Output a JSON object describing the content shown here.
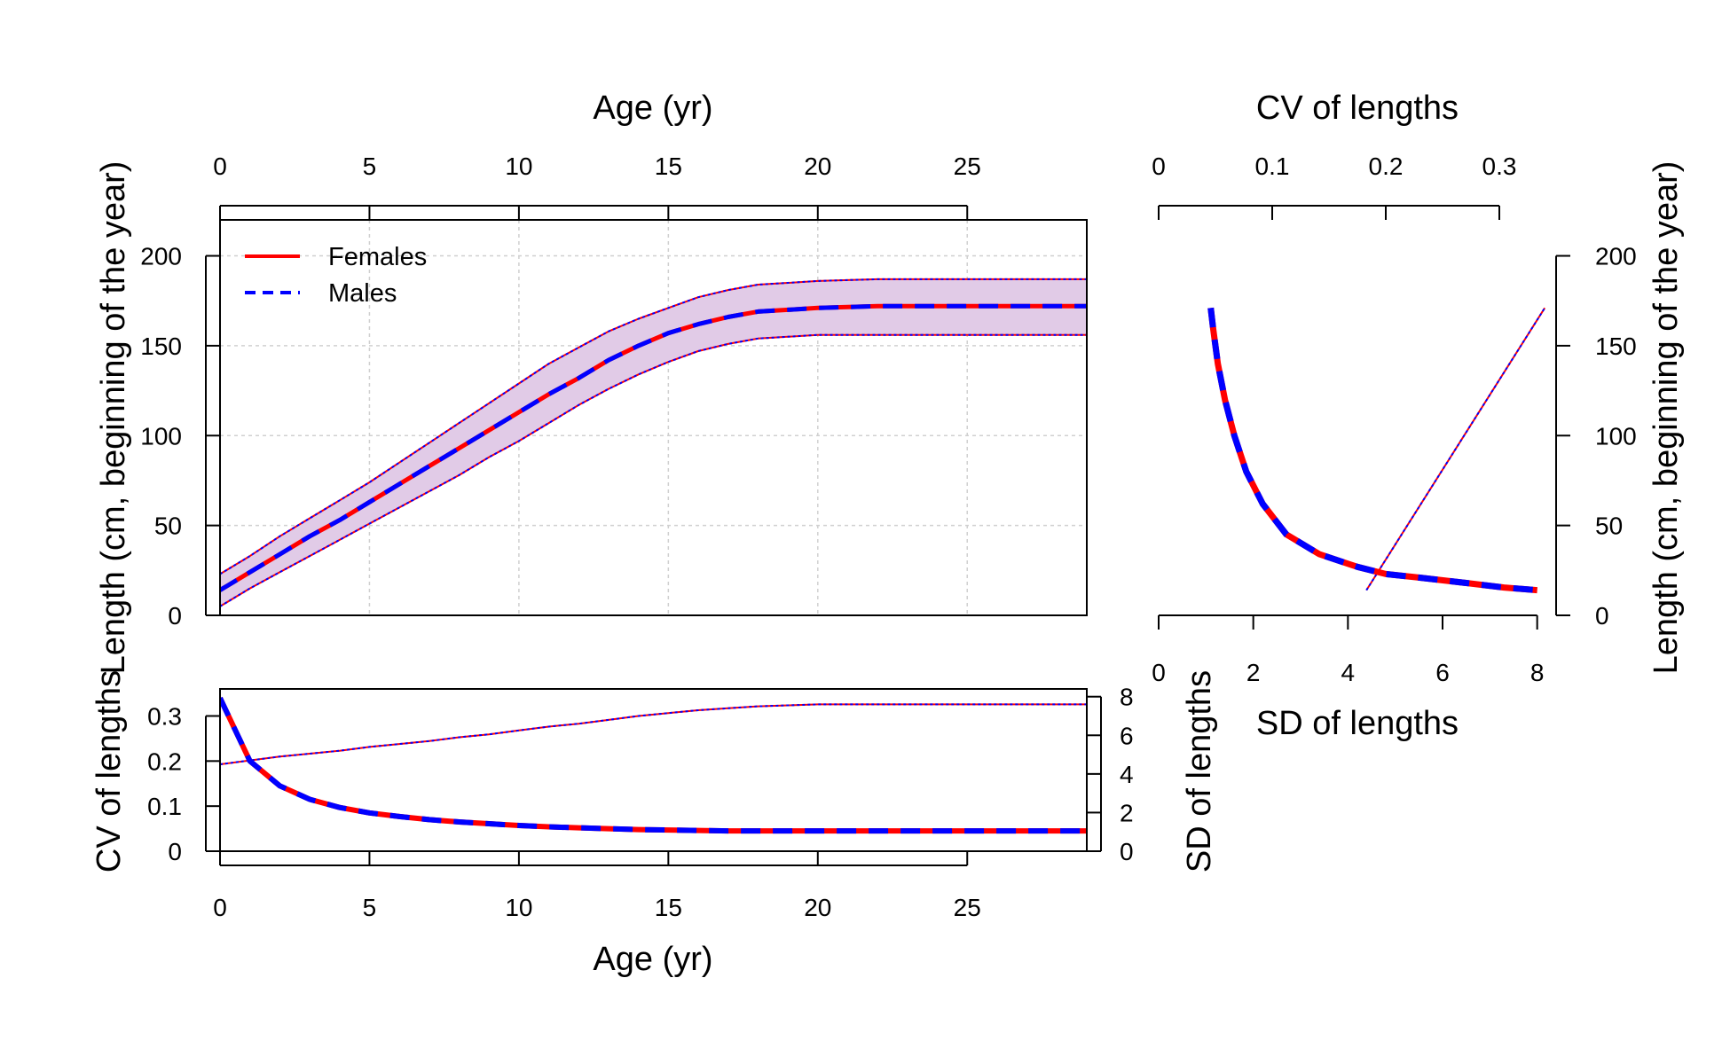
{
  "colors": {
    "females": "#FF0000",
    "males": "#0000FF",
    "band": "#E1CBE7",
    "grid": "#D0D0D0"
  },
  "legend": {
    "placement": "top-left",
    "items": [
      "Females",
      "Males"
    ]
  },
  "chart_data": [
    {
      "type": "line",
      "panel": "length-at-age",
      "xlabel_top": "Age (yr)",
      "ylabel": "Length (cm, beginning of the year)",
      "xlim": [
        0,
        29
      ],
      "ylim": [
        0,
        220
      ],
      "xticks": [
        0,
        5,
        10,
        15,
        20,
        25
      ],
      "yticks": [
        0,
        50,
        100,
        150,
        200
      ],
      "grid": true,
      "x": [
        0,
        1,
        2,
        3,
        4,
        5,
        6,
        7,
        8,
        9,
        10,
        11,
        12,
        13,
        14,
        15,
        16,
        17,
        18,
        19,
        20,
        21,
        22,
        23,
        24,
        25,
        26,
        27,
        28,
        29
      ],
      "series": [
        {
          "name": "Females",
          "values": [
            14,
            24,
            34,
            44,
            53,
            63,
            73,
            83,
            93,
            103,
            113,
            123,
            132,
            142,
            150,
            157,
            162,
            166,
            169,
            170,
            171,
            171.5,
            172,
            172,
            172,
            172,
            172,
            172,
            172,
            172
          ]
        },
        {
          "name": "Males",
          "values": [
            14,
            24,
            34,
            44,
            53,
            63,
            73,
            83,
            93,
            103,
            113,
            123,
            132,
            142,
            150,
            157,
            162,
            166,
            169,
            170,
            171,
            171.5,
            172,
            172,
            172,
            172,
            172,
            172,
            172,
            172
          ]
        }
      ],
      "band_lower": [
        5,
        15,
        24,
        33,
        42,
        51,
        60,
        69,
        78,
        88,
        97,
        107,
        117,
        126,
        134,
        141,
        147,
        151,
        154,
        155,
        156,
        156,
        156,
        156,
        156,
        156,
        156,
        156,
        156,
        156
      ],
      "band_upper": [
        23,
        33,
        44,
        54,
        64,
        74,
        85,
        96,
        107,
        118,
        129,
        140,
        149,
        158,
        165,
        171,
        177,
        181,
        184,
        185,
        186,
        186.5,
        187,
        187,
        187,
        187,
        187,
        187,
        187,
        187
      ]
    },
    {
      "type": "line",
      "panel": "cv-and-sd-at-age",
      "xlabel": "Age (yr)",
      "ylabel": "CV of lengths",
      "ylabel_right": "SD of lengths",
      "xlim": [
        0,
        29
      ],
      "ylim": [
        0,
        0.36
      ],
      "ylim_right": [
        0,
        8.4
      ],
      "xticks": [
        0,
        5,
        10,
        15,
        20,
        25
      ],
      "yticks": [
        0,
        0.1,
        0.2,
        0.3
      ],
      "yticks_right": [
        0,
        2,
        4,
        6,
        8
      ],
      "x": [
        0,
        1,
        2,
        3,
        4,
        5,
        6,
        7,
        8,
        9,
        10,
        11,
        12,
        13,
        14,
        15,
        16,
        17,
        18,
        19,
        20,
        21,
        22,
        23,
        24,
        25,
        26,
        27,
        28,
        29
      ],
      "series": [
        {
          "name": "Females",
          "values": [
            0.34,
            0.2,
            0.145,
            0.115,
            0.097,
            0.085,
            0.077,
            0.07,
            0.065,
            0.061,
            0.057,
            0.054,
            0.052,
            0.05,
            0.048,
            0.047,
            0.046,
            0.045,
            0.045,
            0.045,
            0.045,
            0.045,
            0.045,
            0.045,
            0.045,
            0.045,
            0.045,
            0.045,
            0.045,
            0.045
          ]
        },
        {
          "name": "Males",
          "values": [
            0.34,
            0.2,
            0.145,
            0.115,
            0.097,
            0.085,
            0.077,
            0.07,
            0.065,
            0.061,
            0.057,
            0.054,
            0.052,
            0.05,
            0.048,
            0.047,
            0.046,
            0.045,
            0.045,
            0.045,
            0.045,
            0.045,
            0.045,
            0.045,
            0.045,
            0.045,
            0.045,
            0.045,
            0.045,
            0.045
          ]
        }
      ],
      "sd_series": [
        {
          "name": "Females",
          "values": [
            4.5,
            4.7,
            4.9,
            5.05,
            5.2,
            5.4,
            5.55,
            5.7,
            5.9,
            6.05,
            6.25,
            6.45,
            6.6,
            6.8,
            7.0,
            7.15,
            7.3,
            7.4,
            7.5,
            7.55,
            7.6,
            7.6,
            7.6,
            7.6,
            7.6,
            7.6,
            7.6,
            7.6,
            7.6,
            7.6
          ]
        },
        {
          "name": "Males",
          "values": [
            4.5,
            4.7,
            4.9,
            5.05,
            5.2,
            5.4,
            5.55,
            5.7,
            5.9,
            6.05,
            6.25,
            6.45,
            6.6,
            6.8,
            7.0,
            7.15,
            7.3,
            7.4,
            7.5,
            7.55,
            7.6,
            7.6,
            7.6,
            7.6,
            7.6,
            7.6,
            7.6,
            7.6,
            7.6,
            7.6
          ]
        }
      ]
    },
    {
      "type": "line",
      "panel": "sd-and-cv-vs-length",
      "xlabel": "SD of lengths",
      "xlabel_top": "CV of lengths",
      "ylabel": "Length (cm, beginning of the year)",
      "xlim": [
        0,
        8.4
      ],
      "xlim_top": [
        0,
        0.35
      ],
      "ylim": [
        0,
        220
      ],
      "xticks": [
        0,
        2,
        4,
        6,
        8
      ],
      "xticks_top": [
        0,
        0.1,
        0.2,
        0.3
      ],
      "yticks": [
        0,
        50,
        100,
        150,
        200
      ],
      "sd_vs_length": {
        "sd": [
          1.1,
          1.15,
          1.25,
          1.4,
          1.6,
          1.85,
          2.2,
          2.7,
          3.4,
          4.2,
          4.8,
          5.5,
          6.5,
          7.3,
          8.0
        ],
        "length": [
          171,
          160,
          140,
          120,
          100,
          80,
          62,
          45,
          34,
          27,
          23,
          21,
          18,
          15.5,
          14
        ]
      },
      "cv_vs_length": {
        "cv": [
          0.183,
          0.34
        ],
        "length": [
          14,
          171
        ]
      }
    }
  ]
}
